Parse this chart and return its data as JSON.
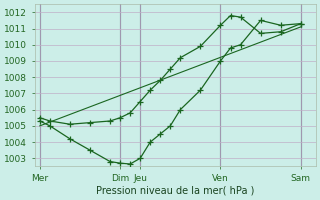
{
  "title": "Pression niveau de la mer( hPa )",
  "bg_color": "#cceee8",
  "grid_color": "#c0afc8",
  "line_color": "#1a6620",
  "ylim": [
    1002.5,
    1012.5
  ],
  "yticks": [
    1003,
    1004,
    1005,
    1006,
    1007,
    1008,
    1009,
    1010,
    1011,
    1012
  ],
  "day_labels": [
    "Mer",
    "Dim",
    "Jeu",
    "Ven",
    "Sam"
  ],
  "day_positions": [
    0,
    8,
    10,
    18,
    26
  ],
  "xlim": [
    -0.5,
    27.5
  ],
  "line1_x": [
    0,
    1,
    3,
    5,
    7,
    8,
    9,
    10,
    11,
    12,
    13,
    14,
    16,
    18,
    19,
    20,
    22,
    24,
    26
  ],
  "line1_y": [
    1005.3,
    1005.0,
    1004.2,
    1003.5,
    1002.8,
    1002.7,
    1002.65,
    1003.0,
    1004.0,
    1004.5,
    1005.0,
    1006.0,
    1007.2,
    1009.0,
    1009.8,
    1010.0,
    1011.5,
    1011.2,
    1011.3
  ],
  "line2_x": [
    0,
    1,
    3,
    5,
    7,
    8,
    9,
    10,
    11,
    12,
    13,
    14,
    16,
    18,
    19,
    20,
    22,
    24,
    26
  ],
  "line2_y": [
    1005.5,
    1005.3,
    1005.1,
    1005.2,
    1005.3,
    1005.5,
    1005.8,
    1006.5,
    1007.2,
    1007.8,
    1008.5,
    1009.2,
    1009.9,
    1011.2,
    1011.8,
    1011.7,
    1010.7,
    1010.8,
    1011.3
  ],
  "line3_x": [
    0,
    26
  ],
  "line3_y": [
    1005.0,
    1011.1
  ]
}
